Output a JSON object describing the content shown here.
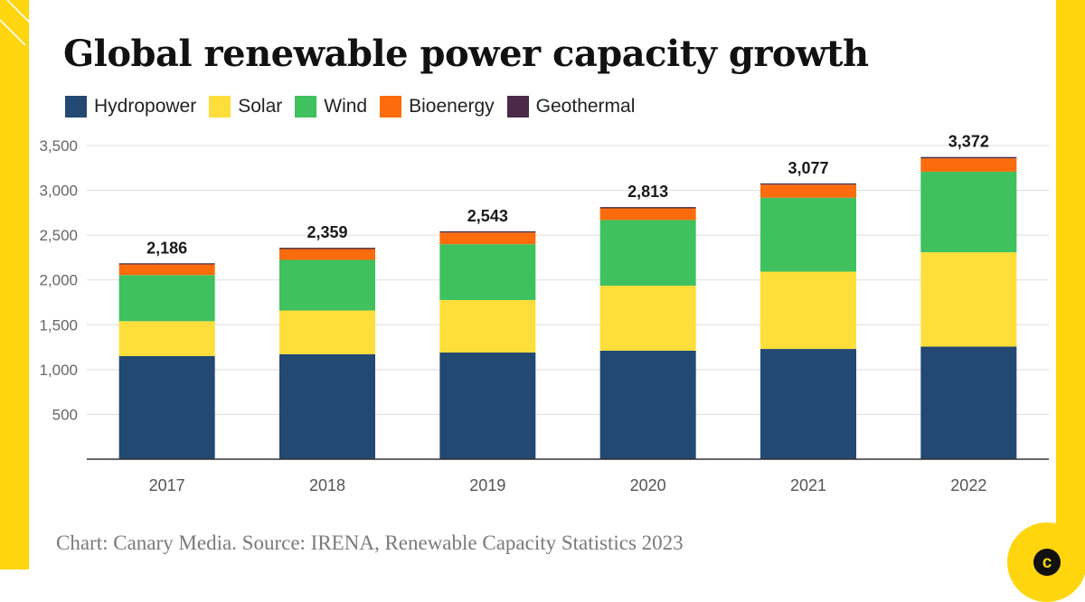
{
  "title": "Global renewable power capacity growth",
  "source": "Chart: Canary Media. Source: IRENA, Renewable Capacity Statistics 2023",
  "logo": {
    "letter": "c"
  },
  "colors": {
    "frame": "#ffd50d",
    "text": "#111111",
    "axis": "#333333",
    "grid": "#dddddd"
  },
  "chart_data": {
    "type": "bar",
    "stacked": true,
    "title": "Global renewable power capacity growth",
    "categories": [
      "2017",
      "2018",
      "2019",
      "2020",
      "2021",
      "2022"
    ],
    "series": [
      {
        "name": "Hydropower",
        "color": "#234872",
        "values": [
          1150,
          1172,
          1190,
          1211,
          1230,
          1256
        ]
      },
      {
        "name": "Solar",
        "color": "#fede3a",
        "values": [
          390,
          487,
          586,
          725,
          863,
          1053
        ]
      },
      {
        "name": "Wind",
        "color": "#3ec15e",
        "values": [
          515,
          565,
          623,
          733,
          825,
          899
        ]
      },
      {
        "name": "Bioenergy",
        "color": "#fc6c0c",
        "values": [
          118,
          121,
          130,
          130,
          146,
          149
        ]
      },
      {
        "name": "Geothermal",
        "color": "#4b2a48",
        "values": [
          13,
          14,
          14,
          14,
          13,
          15
        ]
      }
    ],
    "totals": [
      2186,
      2359,
      2543,
      2813,
      3077,
      3372
    ],
    "total_labels": [
      "2,186",
      "2,359",
      "2,543",
      "2,813",
      "3,077",
      "3,372"
    ],
    "yticks": [
      500,
      1000,
      1500,
      2000,
      2500,
      3000,
      3500
    ],
    "ytick_labels": [
      "500",
      "1,000",
      "1,500",
      "2,000",
      "2,500",
      "3,000",
      "3,500"
    ],
    "ylim": [
      0,
      3500
    ],
    "grid": true,
    "legend": "top-left",
    "xlabel": "",
    "ylabel": ""
  }
}
